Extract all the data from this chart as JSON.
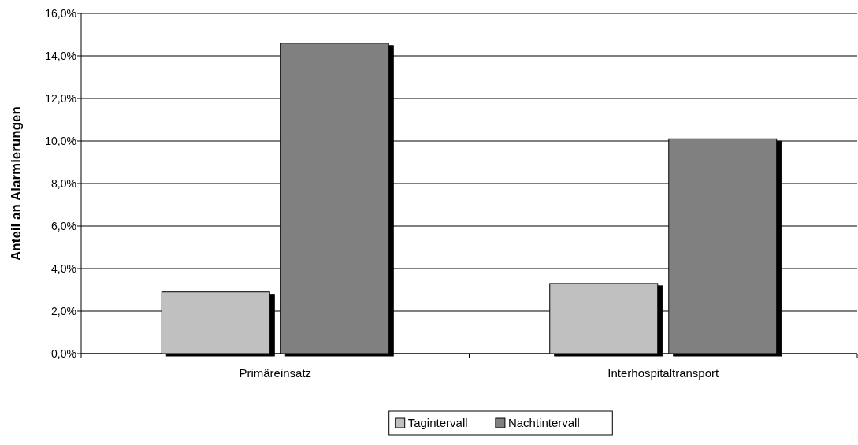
{
  "chart_data": {
    "type": "bar",
    "ylabel": "Anteil an Alarmierungen",
    "categories": [
      "Primäreinsatz",
      "Interhospitaltransport"
    ],
    "series": [
      {
        "name": "Tagintervall",
        "color": "#c0c0c0",
        "values": [
          2.9,
          3.3
        ]
      },
      {
        "name": "Nachtintervall",
        "color": "#808080",
        "values": [
          14.6,
          10.1
        ]
      }
    ],
    "ylim": [
      0,
      16
    ],
    "yticks": [
      {
        "value": 0,
        "label": "0,0%"
      },
      {
        "value": 2,
        "label": "2,0%"
      },
      {
        "value": 4,
        "label": "4,0%"
      },
      {
        "value": 6,
        "label": "6,0%"
      },
      {
        "value": 8,
        "label": "8,0%"
      },
      {
        "value": 10,
        "label": "10,0%"
      },
      {
        "value": 12,
        "label": "12,0%"
      },
      {
        "value": 14,
        "label": "14,0%"
      },
      {
        "value": 16,
        "label": "16,0%"
      }
    ],
    "grid": "y",
    "legend": "bottom"
  }
}
